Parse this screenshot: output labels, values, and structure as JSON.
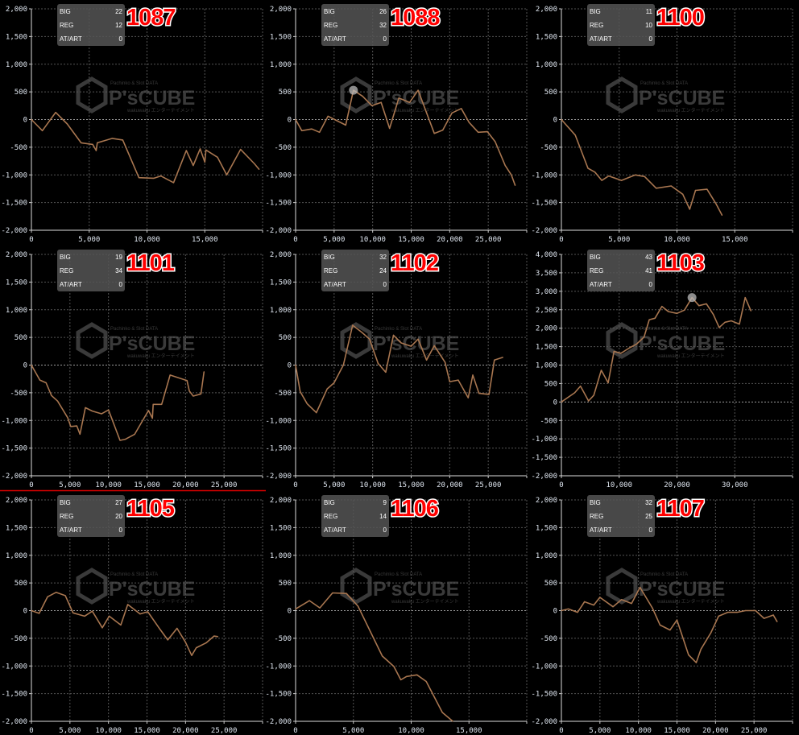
{
  "info_labels": {
    "big": "BIG",
    "reg": "REG",
    "atart": "AT/ART"
  },
  "watermark": {
    "top": "Pachinko & Slot DATA",
    "brand": "P'sCUBE",
    "bottom": "wakuwaku エンターテイメント"
  },
  "colors": {
    "background": "#000000",
    "line": "#a87650",
    "grid": "#555555",
    "machine_number": "#ff0000",
    "info_box": "#4a4a4a",
    "divider": "#e00000"
  },
  "chart_data": [
    {
      "type": "line",
      "machine": "1087",
      "big": "22",
      "reg": "12",
      "atart": "0",
      "xlim": [
        0,
        20000
      ],
      "xtick_step": 5000,
      "ylim": [
        -2000,
        2000
      ],
      "ytick_step": 500,
      "grid": true,
      "points": [
        [
          0,
          0
        ],
        [
          950,
          -200
        ],
        [
          2100,
          130
        ],
        [
          3100,
          -80
        ],
        [
          4300,
          -420
        ],
        [
          5300,
          -450
        ],
        [
          5600,
          -560
        ],
        [
          5700,
          -420
        ],
        [
          7000,
          -340
        ],
        [
          7900,
          -370
        ],
        [
          9300,
          -1050
        ],
        [
          10600,
          -1060
        ],
        [
          11200,
          -1020
        ],
        [
          12300,
          -1140
        ],
        [
          13400,
          -560
        ],
        [
          14000,
          -830
        ],
        [
          14600,
          -530
        ],
        [
          15000,
          -770
        ],
        [
          15100,
          -550
        ],
        [
          16100,
          -680
        ],
        [
          16900,
          -1000
        ],
        [
          18100,
          -540
        ],
        [
          19300,
          -800
        ],
        [
          19700,
          -900
        ]
      ]
    },
    {
      "type": "line",
      "machine": "1088",
      "big": "26",
      "reg": "32",
      "atart": "0",
      "xlim": [
        0,
        30000
      ],
      "xtick_step": 5000,
      "ylim": [
        -2000,
        2000
      ],
      "ytick_step": 500,
      "grid": true,
      "marker": [
        7500,
        530
      ],
      "points": [
        [
          0,
          0
        ],
        [
          800,
          -200
        ],
        [
          2100,
          -170
        ],
        [
          3100,
          -230
        ],
        [
          4200,
          60
        ],
        [
          6500,
          -100
        ],
        [
          7500,
          530
        ],
        [
          8700,
          420
        ],
        [
          9900,
          250
        ],
        [
          11100,
          310
        ],
        [
          12200,
          -160
        ],
        [
          13400,
          390
        ],
        [
          14800,
          310
        ],
        [
          15900,
          530
        ],
        [
          18000,
          -250
        ],
        [
          19100,
          -190
        ],
        [
          20300,
          120
        ],
        [
          21500,
          200
        ],
        [
          22500,
          -50
        ],
        [
          23700,
          -230
        ],
        [
          24900,
          -220
        ],
        [
          25900,
          -400
        ],
        [
          27200,
          -830
        ],
        [
          28000,
          -1000
        ],
        [
          28500,
          -1190
        ]
      ]
    },
    {
      "type": "line",
      "machine": "1100",
      "big": "11",
      "reg": "10",
      "atart": "0",
      "xlim": [
        0,
        20000
      ],
      "xtick_step": 5000,
      "ylim": [
        -2000,
        2000
      ],
      "ytick_step": 500,
      "grid": true,
      "points": [
        [
          0,
          0
        ],
        [
          1200,
          -280
        ],
        [
          2300,
          -880
        ],
        [
          2900,
          -950
        ],
        [
          3500,
          -1100
        ],
        [
          4100,
          -1020
        ],
        [
          5200,
          -1100
        ],
        [
          6400,
          -1000
        ],
        [
          7200,
          -1030
        ],
        [
          8200,
          -1240
        ],
        [
          9500,
          -1200
        ],
        [
          10500,
          -1350
        ],
        [
          11100,
          -1620
        ],
        [
          11600,
          -1280
        ],
        [
          12600,
          -1260
        ],
        [
          13400,
          -1530
        ],
        [
          13900,
          -1730
        ]
      ]
    },
    {
      "type": "line",
      "machine": "1101",
      "big": "19",
      "reg": "34",
      "atart": "0",
      "xlim": [
        0,
        30000
      ],
      "xtick_step": 5000,
      "ylim": [
        -2000,
        2000
      ],
      "ytick_step": 500,
      "grid": true,
      "points": [
        [
          0,
          0
        ],
        [
          1100,
          -270
        ],
        [
          1900,
          -320
        ],
        [
          2600,
          -550
        ],
        [
          3400,
          -650
        ],
        [
          4700,
          -950
        ],
        [
          5100,
          -1110
        ],
        [
          5900,
          -1100
        ],
        [
          6300,
          -1250
        ],
        [
          7000,
          -770
        ],
        [
          7900,
          -830
        ],
        [
          9100,
          -880
        ],
        [
          10000,
          -810
        ],
        [
          11500,
          -1360
        ],
        [
          12200,
          -1340
        ],
        [
          13400,
          -1250
        ],
        [
          15200,
          -820
        ],
        [
          15700,
          -960
        ],
        [
          15800,
          -710
        ],
        [
          16900,
          -710
        ],
        [
          18000,
          -180
        ],
        [
          20200,
          -280
        ],
        [
          20500,
          -470
        ],
        [
          21000,
          -560
        ],
        [
          22000,
          -520
        ],
        [
          22400,
          -120
        ]
      ]
    },
    {
      "type": "line",
      "machine": "1102",
      "big": "32",
      "reg": "24",
      "atart": "0",
      "xlim": [
        0,
        30000
      ],
      "xtick_step": 5000,
      "ylim": [
        -2000,
        2000
      ],
      "ytick_step": 500,
      "grid": true,
      "points": [
        [
          0,
          0
        ],
        [
          600,
          -480
        ],
        [
          1500,
          -700
        ],
        [
          2700,
          -860
        ],
        [
          4100,
          -430
        ],
        [
          5000,
          -320
        ],
        [
          6200,
          0
        ],
        [
          7400,
          720
        ],
        [
          8600,
          590
        ],
        [
          9600,
          470
        ],
        [
          10700,
          30
        ],
        [
          11700,
          -130
        ],
        [
          12700,
          540
        ],
        [
          13700,
          400
        ],
        [
          15000,
          340
        ],
        [
          15900,
          470
        ],
        [
          17000,
          90
        ],
        [
          18000,
          350
        ],
        [
          19400,
          50
        ],
        [
          20000,
          -300
        ],
        [
          21100,
          -270
        ],
        [
          22400,
          -590
        ],
        [
          23000,
          -180
        ],
        [
          23800,
          -510
        ],
        [
          25100,
          -530
        ],
        [
          25800,
          90
        ],
        [
          26900,
          140
        ]
      ]
    },
    {
      "type": "line",
      "machine": "1103",
      "big": "43",
      "reg": "41",
      "atart": "0",
      "xlim": [
        0,
        40000
      ],
      "xtick_step": 10000,
      "ylim": [
        -2000,
        4000
      ],
      "ytick_step": 500,
      "grid": true,
      "marker": [
        22600,
        2830
      ],
      "points": [
        [
          0,
          0
        ],
        [
          2300,
          250
        ],
        [
          3300,
          430
        ],
        [
          4700,
          30
        ],
        [
          5600,
          180
        ],
        [
          6900,
          860
        ],
        [
          8100,
          520
        ],
        [
          9100,
          1370
        ],
        [
          10300,
          1320
        ],
        [
          11800,
          1470
        ],
        [
          13000,
          1570
        ],
        [
          14300,
          1760
        ],
        [
          15200,
          2230
        ],
        [
          16200,
          2270
        ],
        [
          17400,
          2590
        ],
        [
          18500,
          2450
        ],
        [
          20000,
          2400
        ],
        [
          21300,
          2490
        ],
        [
          22600,
          2830
        ],
        [
          23800,
          2610
        ],
        [
          25100,
          2660
        ],
        [
          26300,
          2370
        ],
        [
          27300,
          2020
        ],
        [
          28300,
          2160
        ],
        [
          29400,
          2200
        ],
        [
          30800,
          2110
        ],
        [
          31800,
          2830
        ],
        [
          32800,
          2470
        ]
      ]
    },
    {
      "type": "line",
      "machine": "1105",
      "big": "27",
      "reg": "20",
      "atart": "0",
      "xlim": [
        0,
        30000
      ],
      "xtick_step": 5000,
      "ylim": [
        -2000,
        2000
      ],
      "ytick_step": 500,
      "grid": true,
      "points": [
        [
          0,
          0
        ],
        [
          1000,
          -50
        ],
        [
          2100,
          250
        ],
        [
          3200,
          330
        ],
        [
          4400,
          270
        ],
        [
          5400,
          -40
        ],
        [
          6900,
          -100
        ],
        [
          7900,
          -10
        ],
        [
          9200,
          -310
        ],
        [
          10100,
          -100
        ],
        [
          11600,
          -260
        ],
        [
          12500,
          110
        ],
        [
          14100,
          -60
        ],
        [
          15100,
          -20
        ],
        [
          16700,
          -340
        ],
        [
          17700,
          -530
        ],
        [
          18900,
          -320
        ],
        [
          20000,
          -570
        ],
        [
          20800,
          -810
        ],
        [
          21400,
          -670
        ],
        [
          22700,
          -580
        ],
        [
          23700,
          -460
        ],
        [
          24200,
          -470
        ]
      ]
    },
    {
      "type": "line",
      "machine": "1106",
      "big": "9",
      "reg": "14",
      "atart": "0",
      "xlim": [
        0,
        20000
      ],
      "xtick_step": 5000,
      "ylim": [
        -2000,
        2000
      ],
      "ytick_step": 500,
      "grid": true,
      "points": [
        [
          0,
          30
        ],
        [
          1200,
          180
        ],
        [
          2100,
          50
        ],
        [
          3200,
          320
        ],
        [
          4400,
          310
        ],
        [
          5400,
          80
        ],
        [
          7500,
          -820
        ],
        [
          8500,
          -1010
        ],
        [
          9100,
          -1250
        ],
        [
          9600,
          -1190
        ],
        [
          10500,
          -1160
        ],
        [
          11300,
          -1280
        ],
        [
          12700,
          -1840
        ],
        [
          13600,
          -2000
        ]
      ]
    },
    {
      "type": "line",
      "machine": "1107",
      "big": "32",
      "reg": "25",
      "atart": "0",
      "xlim": [
        0,
        30000
      ],
      "xtick_step": 5000,
      "ylim": [
        -2000,
        2000
      ],
      "ytick_step": 500,
      "grid": true,
      "points": [
        [
          0,
          0
        ],
        [
          900,
          30
        ],
        [
          2100,
          -30
        ],
        [
          3000,
          160
        ],
        [
          4200,
          100
        ],
        [
          5000,
          240
        ],
        [
          6700,
          70
        ],
        [
          7800,
          200
        ],
        [
          9100,
          130
        ],
        [
          10200,
          420
        ],
        [
          11800,
          50
        ],
        [
          12800,
          -260
        ],
        [
          14100,
          -350
        ],
        [
          15000,
          -170
        ],
        [
          16500,
          -800
        ],
        [
          17500,
          -940
        ],
        [
          18100,
          -700
        ],
        [
          19400,
          -400
        ],
        [
          20400,
          -100
        ],
        [
          21600,
          -30
        ],
        [
          22800,
          -30
        ],
        [
          23900,
          0
        ],
        [
          25200,
          0
        ],
        [
          26300,
          -140
        ],
        [
          27500,
          -80
        ],
        [
          28000,
          -200
        ]
      ]
    }
  ]
}
